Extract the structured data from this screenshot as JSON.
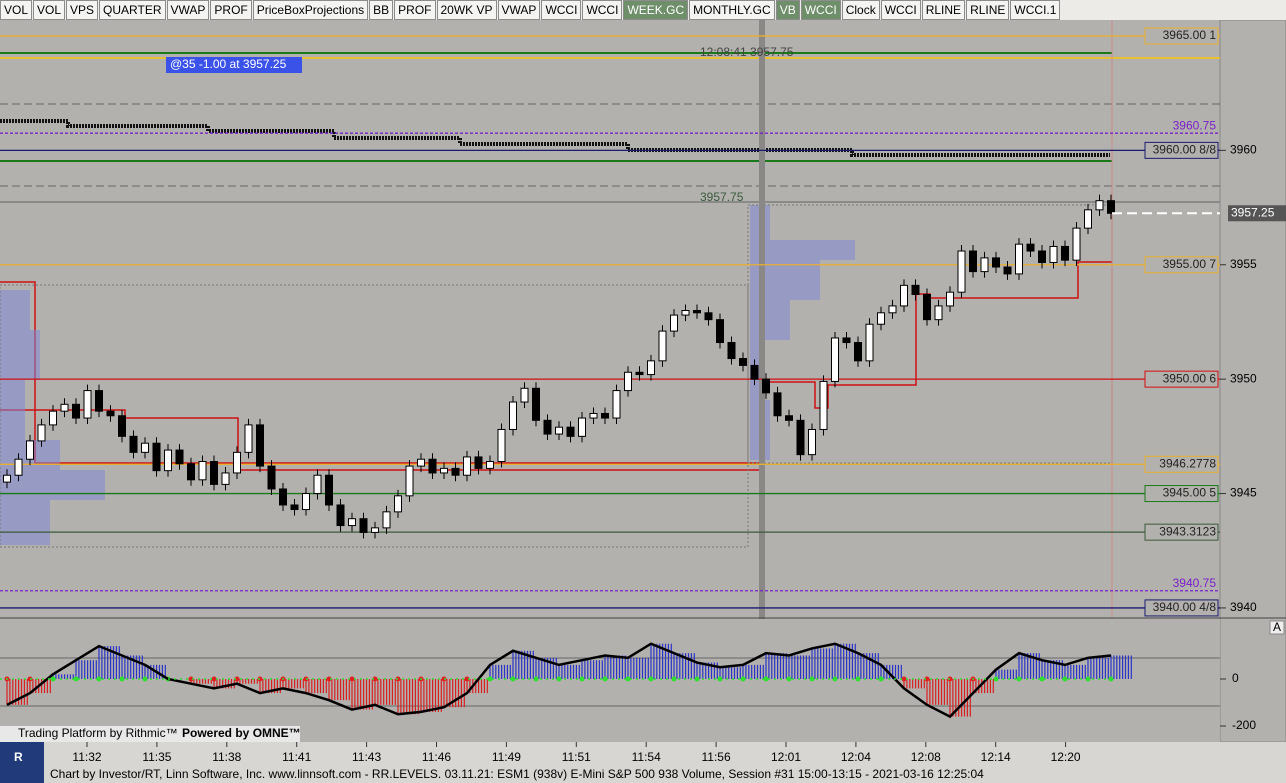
{
  "toolbar": [
    "VOL",
    "VOL",
    "VPS",
    "QUARTER",
    "VWAP",
    "PROF",
    "PriceBoxProjections",
    "BB",
    "PROF",
    "20WK VP",
    "VWAP",
    "WCCI",
    "WCCI",
    "WEEK.GC",
    "MONTHLY.GC",
    "VB",
    "WCCI",
    "Clock",
    "WCCI",
    "RLINE",
    "RLINE",
    "WCCI.1"
  ],
  "toolbar_active": [
    13,
    15,
    16
  ],
  "order_note": "@35  -1.00 at 3957.25",
  "time_note": "12:08:41  3957.75",
  "high_note": "3957.75",
  "current_price": {
    "value": 3957.25,
    "label": "3957.25"
  },
  "price_axis": {
    "ylim": [
      3939.56,
      3965.61
    ],
    "ticks": [
      3940,
      3945,
      3950,
      3955,
      3960
    ]
  },
  "levels": [
    {
      "price": 3965,
      "label": "3965.00 1",
      "color": "#e8b030",
      "box": true
    },
    {
      "price": 3960.75,
      "label": "3960.75",
      "color": "#7a20c8",
      "box": false
    },
    {
      "price": 3960,
      "label": "3960.00 8/8",
      "color": "#1a1a6e",
      "box": true
    },
    {
      "price": 3955,
      "label": "3955.00 7",
      "color": "#e8b030",
      "box": true
    },
    {
      "price": 3950,
      "label": "3950.00 6",
      "color": "#d01010",
      "box": true
    },
    {
      "price": 3946.2778,
      "label": "3946.2778",
      "color": "#e8b030",
      "box": true
    },
    {
      "price": 3945,
      "label": "3945.00 5",
      "color": "#1a7a1a",
      "box": true
    },
    {
      "price": 3943.3123,
      "label": "3943.3123",
      "color": "#3a5a3a",
      "box": true
    },
    {
      "price": 3940.75,
      "label": "3940.75",
      "color": "#7a20c8",
      "box": false
    },
    {
      "price": 3940,
      "label": "3940.00 4/8",
      "color": "#1a1a6e",
      "box": true
    }
  ],
  "candles": {
    "closes": [
      3945.8,
      3946.5,
      3947.3,
      3948.0,
      3948.6,
      3948.9,
      3948.3,
      3949.5,
      3948.6,
      3948.4,
      3947.5,
      3946.8,
      3947.2,
      3946.0,
      3946.9,
      3946.3,
      3945.6,
      3946.4,
      3945.4,
      3945.9,
      3946.8,
      3948.0,
      3946.2,
      3945.2,
      3944.5,
      3944.3,
      3945.0,
      3945.8,
      3944.5,
      3943.6,
      3943.9,
      3943.3,
      3943.5,
      3944.2,
      3944.9,
      3946.2,
      3946.5,
      3945.9,
      3946.1,
      3945.8,
      3946.6,
      3946.1,
      3946.4,
      3947.8,
      3949.0,
      3949.6,
      3948.2,
      3947.6,
      3947.9,
      3947.5,
      3948.3,
      3948.5,
      3948.3,
      3949.5,
      3950.3,
      3950.2,
      3950.8,
      3952.1,
      3952.8,
      3953.0,
      3952.9,
      3952.6,
      3951.6,
      3950.9,
      3950.6,
      3950.0,
      3949.4,
      3948.4,
      3948.2,
      3946.7,
      3947.8,
      3949.9,
      3951.8,
      3951.6,
      3950.8,
      3952.4,
      3952.9,
      3953.2,
      3954.1,
      3953.7,
      3952.6,
      3953.2,
      3953.8,
      3955.6,
      3954.7,
      3955.3,
      3954.9,
      3954.6,
      3955.9,
      3955.6,
      3955.1,
      3955.8,
      3955.2,
      3956.6,
      3957.4,
      3957.8,
      3957.25
    ]
  },
  "cci": {
    "ylim": [
      -268,
      251
    ],
    "ticks": [
      0,
      -200
    ],
    "axis_letter": "A",
    "values": [
      -110,
      -60,
      20,
      80,
      140,
      100,
      60,
      0,
      -20,
      -40,
      -20,
      -60,
      -40,
      -60,
      -90,
      -130,
      -110,
      -150,
      -140,
      -120,
      -60,
      60,
      120,
      90,
      60,
      80,
      100,
      90,
      150,
      110,
      70,
      50,
      60,
      110,
      100,
      130,
      150,
      110,
      60,
      -40,
      -110,
      -160,
      -60,
      40,
      110,
      80,
      60,
      90,
      100
    ]
  },
  "time_labels": [
    "11:32",
    "11:35",
    "11:38",
    "11:41",
    "11:43",
    "11:46",
    "11:49",
    "11:51",
    "11:54",
    "11:56",
    "12:01",
    "12:04",
    "12:08",
    "12:14",
    "12:20"
  ],
  "branding": [
    "Trading Platform by Rithmic™",
    "Powered by OMNE™"
  ],
  "footer": "Chart by Investor/RT, Linn Software, Inc. www.linnsoft.com - RR.LEVELS.  03.11.21: ESM1 (938v) E-Mini S&P 500 938 Volume, Session #31 15:00-13:15 - 2021-03-16 12:25:04"
}
